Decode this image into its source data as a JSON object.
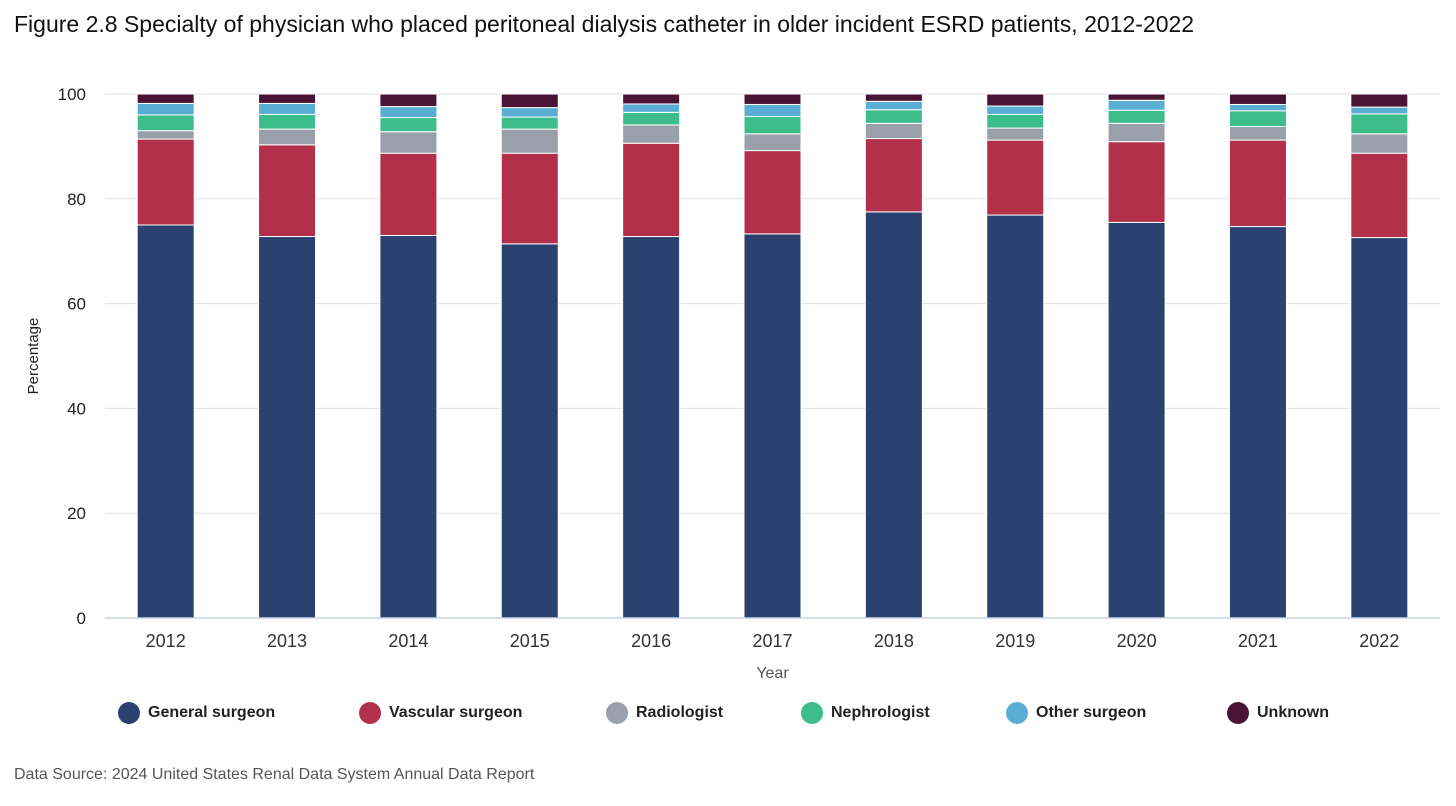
{
  "title": "Figure 2.8 Specialty of physician who placed peritoneal dialysis catheter in older incident ESRD patients, 2012-2022",
  "source": "Data Source: 2024 United States Renal Data System Annual Data Report",
  "chart_data": {
    "type": "bar",
    "stacked": true,
    "xlabel": "Year",
    "ylabel": "Percentage",
    "ylim": [
      0,
      100
    ],
    "yticks": [
      0,
      20,
      40,
      60,
      80,
      100
    ],
    "grid": true,
    "legend_position": "bottom",
    "categories": [
      "2012",
      "2013",
      "2014",
      "2015",
      "2016",
      "2017",
      "2018",
      "2019",
      "2020",
      "2021",
      "2022"
    ],
    "series": [
      {
        "name": "General surgeon",
        "color": "#2b4170",
        "values": [
          75.0,
          72.8,
          73.0,
          71.4,
          72.8,
          73.3,
          77.5,
          76.9,
          75.5,
          74.7,
          72.6
        ]
      },
      {
        "name": "Vascular surgeon",
        "color": "#b2304a",
        "values": [
          16.4,
          17.5,
          15.7,
          17.3,
          17.8,
          15.9,
          14.0,
          14.3,
          15.4,
          16.5,
          16.1
        ]
      },
      {
        "name": "Radiologist",
        "color": "#9aa0aa",
        "values": [
          1.6,
          3.0,
          4.1,
          4.6,
          3.5,
          3.2,
          2.9,
          2.3,
          3.5,
          2.6,
          3.7
        ]
      },
      {
        "name": "Nephrologist",
        "color": "#3dbd8c",
        "values": [
          3.0,
          2.8,
          2.7,
          2.3,
          2.4,
          3.3,
          2.6,
          2.6,
          2.5,
          3.0,
          3.8
        ]
      },
      {
        "name": "Other surgeon",
        "color": "#5aaed3",
        "values": [
          2.2,
          2.1,
          2.1,
          1.8,
          1.6,
          2.3,
          1.6,
          1.6,
          1.9,
          1.2,
          1.3
        ]
      },
      {
        "name": "Unknown",
        "color": "#4a1535",
        "values": [
          1.8,
          1.8,
          2.4,
          2.6,
          1.9,
          2.0,
          1.4,
          2.3,
          1.2,
          2.0,
          2.5
        ]
      }
    ]
  }
}
